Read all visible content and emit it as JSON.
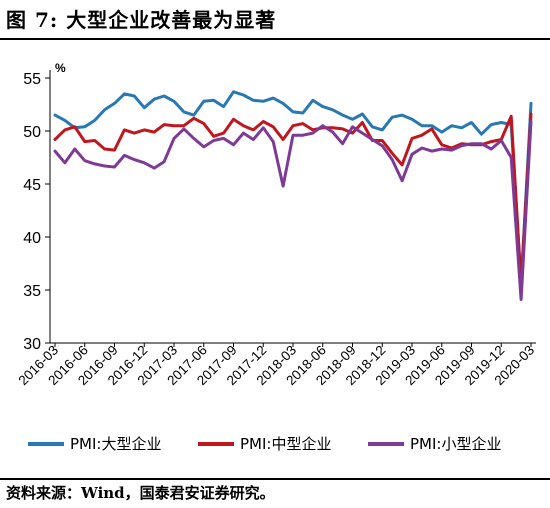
{
  "title": "图 7:  大型企业改善最为显著",
  "source": "资料来源：Wind，国泰君安证券研究。",
  "chart_data": {
    "type": "line",
    "ylabel": "%",
    "ylim": [
      30,
      55
    ],
    "yticks": [
      30,
      35,
      40,
      45,
      50,
      55
    ],
    "grid": false,
    "legend": "bottom",
    "x": [
      "2016-03",
      "2016-04",
      "2016-05",
      "2016-06",
      "2016-07",
      "2016-08",
      "2016-09",
      "2016-10",
      "2016-11",
      "2016-12",
      "2017-01",
      "2017-02",
      "2017-03",
      "2017-04",
      "2017-05",
      "2017-06",
      "2017-07",
      "2017-08",
      "2017-09",
      "2017-10",
      "2017-11",
      "2017-12",
      "2018-01",
      "2018-02",
      "2018-03",
      "2018-04",
      "2018-05",
      "2018-06",
      "2018-07",
      "2018-08",
      "2018-09",
      "2018-10",
      "2018-11",
      "2018-12",
      "2019-01",
      "2019-02",
      "2019-03",
      "2019-04",
      "2019-05",
      "2019-06",
      "2019-07",
      "2019-08",
      "2019-09",
      "2019-10",
      "2019-11",
      "2019-12",
      "2020-01",
      "2020-02",
      "2020-03"
    ],
    "xtick_labels": [
      "2016-03",
      "2016-06",
      "2016-09",
      "2016-12",
      "2017-03",
      "2017-06",
      "2017-09",
      "2017-12",
      "2018-03",
      "2018-06",
      "2018-09",
      "2018-12",
      "2019-03",
      "2019-06",
      "2019-09",
      "2019-12",
      "2020-03"
    ],
    "series": [
      {
        "name": "PMI:大型企业",
        "color": "#2878b4",
        "values": [
          51.5,
          51.0,
          50.3,
          50.4,
          51.0,
          52.0,
          52.6,
          53.5,
          53.3,
          52.2,
          53.0,
          53.3,
          52.8,
          51.8,
          51.5,
          52.8,
          52.9,
          52.3,
          53.7,
          53.4,
          52.9,
          52.8,
          53.1,
          52.6,
          51.8,
          51.7,
          52.9,
          52.3,
          52.0,
          51.5,
          51.1,
          51.6,
          50.4,
          50.1,
          51.3,
          51.5,
          51.1,
          50.5,
          50.5,
          49.9,
          50.5,
          50.3,
          50.8,
          49.7,
          50.6,
          50.8,
          50.6,
          35.6,
          52.6
        ]
      },
      {
        "name": "PMI:中型企业",
        "color": "#c0161e",
        "values": [
          49.2,
          50.1,
          50.4,
          49.0,
          49.1,
          48.3,
          48.2,
          50.1,
          49.8,
          50.1,
          49.9,
          50.6,
          50.5,
          50.5,
          51.2,
          50.7,
          49.5,
          49.8,
          51.1,
          50.5,
          50.1,
          50.9,
          50.4,
          49.2,
          50.5,
          50.7,
          50.1,
          50.3,
          50.3,
          50.2,
          49.8,
          50.8,
          49.1,
          49.1,
          47.9,
          46.8,
          49.3,
          49.6,
          50.2,
          48.7,
          48.4,
          48.8,
          48.7,
          48.7,
          49.0,
          49.2,
          51.4,
          35.5,
          51.6
        ]
      },
      {
        "name": "PMI:小型企业",
        "color": "#7d3b97",
        "values": [
          48.1,
          47.0,
          48.3,
          47.2,
          46.9,
          46.7,
          46.6,
          47.7,
          47.3,
          47.0,
          46.5,
          47.1,
          49.3,
          50.2,
          49.3,
          48.5,
          49.1,
          49.3,
          48.7,
          49.8,
          49.2,
          50.3,
          49.0,
          44.8,
          49.6,
          49.6,
          49.8,
          50.5,
          49.9,
          48.8,
          50.4,
          49.8,
          49.2,
          48.6,
          47.3,
          45.3,
          47.8,
          48.4,
          48.1,
          48.3,
          48.2,
          48.6,
          48.8,
          48.8,
          48.3,
          49.1,
          47.5,
          34.1,
          50.9
        ]
      }
    ]
  }
}
